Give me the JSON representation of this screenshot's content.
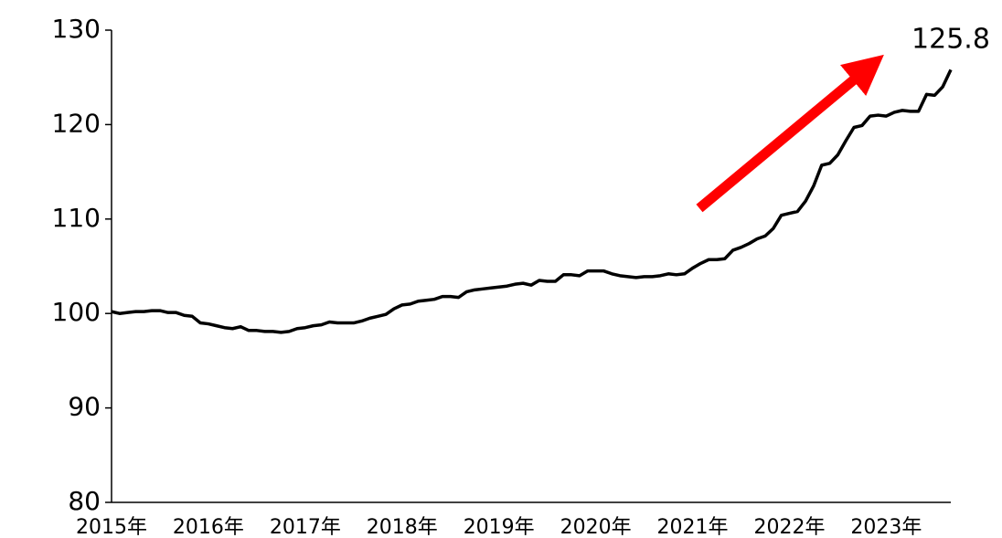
{
  "chart_data": {
    "type": "line",
    "annotation": "125.8",
    "categories": [
      "2015年",
      null,
      null,
      null,
      null,
      null,
      null,
      null,
      null,
      null,
      null,
      null,
      "2016年",
      null,
      null,
      null,
      null,
      null,
      null,
      null,
      null,
      null,
      null,
      null,
      "2017年",
      null,
      null,
      null,
      null,
      null,
      null,
      null,
      null,
      null,
      null,
      null,
      "2018年",
      null,
      null,
      null,
      null,
      null,
      null,
      null,
      null,
      null,
      null,
      null,
      "2019年",
      null,
      null,
      null,
      null,
      null,
      null,
      null,
      null,
      null,
      null,
      null,
      "2020年",
      null,
      null,
      null,
      null,
      null,
      null,
      null,
      null,
      null,
      null,
      null,
      "2021年",
      null,
      null,
      null,
      null,
      null,
      null,
      null,
      null,
      null,
      null,
      null,
      "2022年",
      null,
      null,
      null,
      null,
      null,
      null,
      null,
      null,
      null,
      null,
      null,
      "2023年",
      null,
      null,
      null,
      null,
      null,
      null,
      null,
      null
    ],
    "series": [
      {
        "color": "#000000",
        "values": [
          100.2,
          100.0,
          100.1,
          100.2,
          100.2,
          100.3,
          100.3,
          100.1,
          100.1,
          99.8,
          99.7,
          99.0,
          98.9,
          98.7,
          98.5,
          98.4,
          98.6,
          98.2,
          98.2,
          98.1,
          98.1,
          98.0,
          98.1,
          98.4,
          98.5,
          98.7,
          98.8,
          99.1,
          99.0,
          99.0,
          99.0,
          99.2,
          99.5,
          99.7,
          99.9,
          100.5,
          100.9,
          101.0,
          101.3,
          101.4,
          101.5,
          101.8,
          101.8,
          101.7,
          102.3,
          102.5,
          102.6,
          102.7,
          102.8,
          102.9,
          103.1,
          103.2,
          103.0,
          103.5,
          103.4,
          103.4,
          104.1,
          104.1,
          104.0,
          104.5,
          104.5,
          104.5,
          104.2,
          104.0,
          103.9,
          103.8,
          103.9,
          103.9,
          104.0,
          104.2,
          104.1,
          104.2,
          104.8,
          105.3,
          105.7,
          105.7,
          105.8,
          106.7,
          107.0,
          107.4,
          107.9,
          108.2,
          109.0,
          110.4,
          110.6,
          110.8,
          111.9,
          113.5,
          115.7,
          115.9,
          116.8,
          118.3,
          119.7,
          119.9,
          120.9,
          121.0,
          120.9,
          121.3,
          121.5,
          121.4,
          121.4,
          123.2,
          123.1,
          124.0,
          125.8
        ]
      }
    ],
    "ylim": [
      80,
      130
    ],
    "yticks": [
      80,
      90,
      100,
      110,
      120,
      130
    ]
  }
}
